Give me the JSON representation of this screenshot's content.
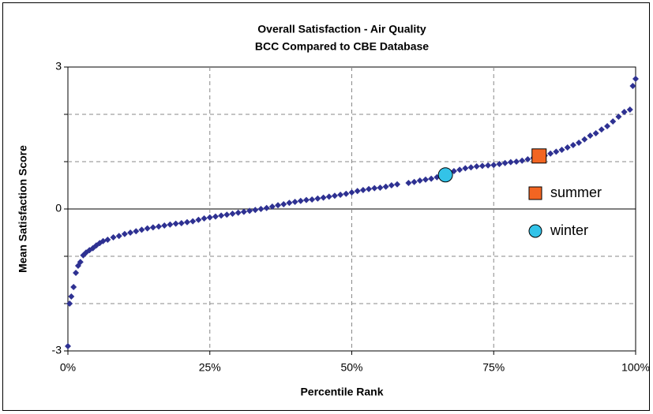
{
  "chart_data": {
    "type": "scatter",
    "title": "Overall Satisfaction - Air Quality",
    "subtitle": "BCC Compared to CBE Database",
    "x_label": "Percentile Rank",
    "y_label": "Mean Satisfaction Score",
    "xlim": [
      0,
      1
    ],
    "xticks": [
      {
        "value": 0,
        "label": "0%"
      },
      {
        "value": 0.25,
        "label": "25%"
      },
      {
        "value": 0.5,
        "label": "50%"
      },
      {
        "value": 0.75,
        "label": "75%"
      },
      {
        "value": 1,
        "label": "100%"
      }
    ],
    "ylim": [
      -3,
      3
    ],
    "yticks": [
      -3,
      0,
      3
    ],
    "y_minor_ticks": [
      -2,
      -1,
      1,
      2
    ],
    "grid": true,
    "legend": "right",
    "series": [
      {
        "color": "#2e3192",
        "marker": "diamond",
        "x": [
          0,
          0.003,
          0.006,
          0.01,
          0.014,
          0.018,
          0.022,
          0.027,
          0.032,
          0.038,
          0.044,
          0.05,
          0.056,
          0.062,
          0.07,
          0.08,
          0.09,
          0.1,
          0.11,
          0.12,
          0.13,
          0.14,
          0.15,
          0.16,
          0.17,
          0.18,
          0.19,
          0.2,
          0.21,
          0.22,
          0.23,
          0.24,
          0.25,
          0.26,
          0.27,
          0.28,
          0.29,
          0.3,
          0.31,
          0.32,
          0.33,
          0.34,
          0.35,
          0.36,
          0.37,
          0.38,
          0.39,
          0.4,
          0.41,
          0.42,
          0.43,
          0.44,
          0.45,
          0.46,
          0.47,
          0.48,
          0.49,
          0.5,
          0.51,
          0.52,
          0.53,
          0.54,
          0.55,
          0.56,
          0.57,
          0.58,
          0.6,
          0.61,
          0.62,
          0.63,
          0.64,
          0.65,
          0.67,
          0.68,
          0.69,
          0.7,
          0.71,
          0.72,
          0.73,
          0.74,
          0.75,
          0.76,
          0.77,
          0.78,
          0.79,
          0.8,
          0.81,
          0.82,
          0.84,
          0.85,
          0.86,
          0.87,
          0.88,
          0.89,
          0.9,
          0.91,
          0.92,
          0.93,
          0.94,
          0.95,
          0.96,
          0.97,
          0.98,
          0.99,
          0.995,
          1
        ],
        "values": [
          -2.9,
          -2.0,
          -1.85,
          -1.65,
          -1.35,
          -1.2,
          -1.12,
          -0.98,
          -0.92,
          -0.87,
          -0.83,
          -0.77,
          -0.72,
          -0.68,
          -0.65,
          -0.6,
          -0.57,
          -0.53,
          -0.5,
          -0.47,
          -0.44,
          -0.41,
          -0.39,
          -0.37,
          -0.35,
          -0.33,
          -0.31,
          -0.3,
          -0.28,
          -0.26,
          -0.23,
          -0.2,
          -0.18,
          -0.16,
          -0.14,
          -0.12,
          -0.1,
          -0.08,
          -0.06,
          -0.04,
          -0.02,
          0,
          0.02,
          0.05,
          0.08,
          0.1,
          0.13,
          0.15,
          0.17,
          0.19,
          0.2,
          0.22,
          0.24,
          0.26,
          0.28,
          0.3,
          0.32,
          0.35,
          0.38,
          0.4,
          0.42,
          0.44,
          0.45,
          0.47,
          0.5,
          0.52,
          0.55,
          0.57,
          0.6,
          0.62,
          0.64,
          0.67,
          0.75,
          0.8,
          0.83,
          0.86,
          0.88,
          0.9,
          0.91,
          0.92,
          0.93,
          0.95,
          0.97,
          0.99,
          1.0,
          1.02,
          1.05,
          1.08,
          1.13,
          1.17,
          1.21,
          1.25,
          1.3,
          1.35,
          1.4,
          1.47,
          1.55,
          1.6,
          1.68,
          1.75,
          1.85,
          1.95,
          2.05,
          2.1,
          2.6,
          2.75
        ]
      },
      {
        "name": "summer",
        "color": "#f26522",
        "marker": "square",
        "x": [
          0.83
        ],
        "values": [
          1.12
        ]
      },
      {
        "name": "winter",
        "color": "#33c3e8",
        "marker": "circle",
        "x": [
          0.665
        ],
        "values": [
          0.72
        ]
      }
    ]
  }
}
